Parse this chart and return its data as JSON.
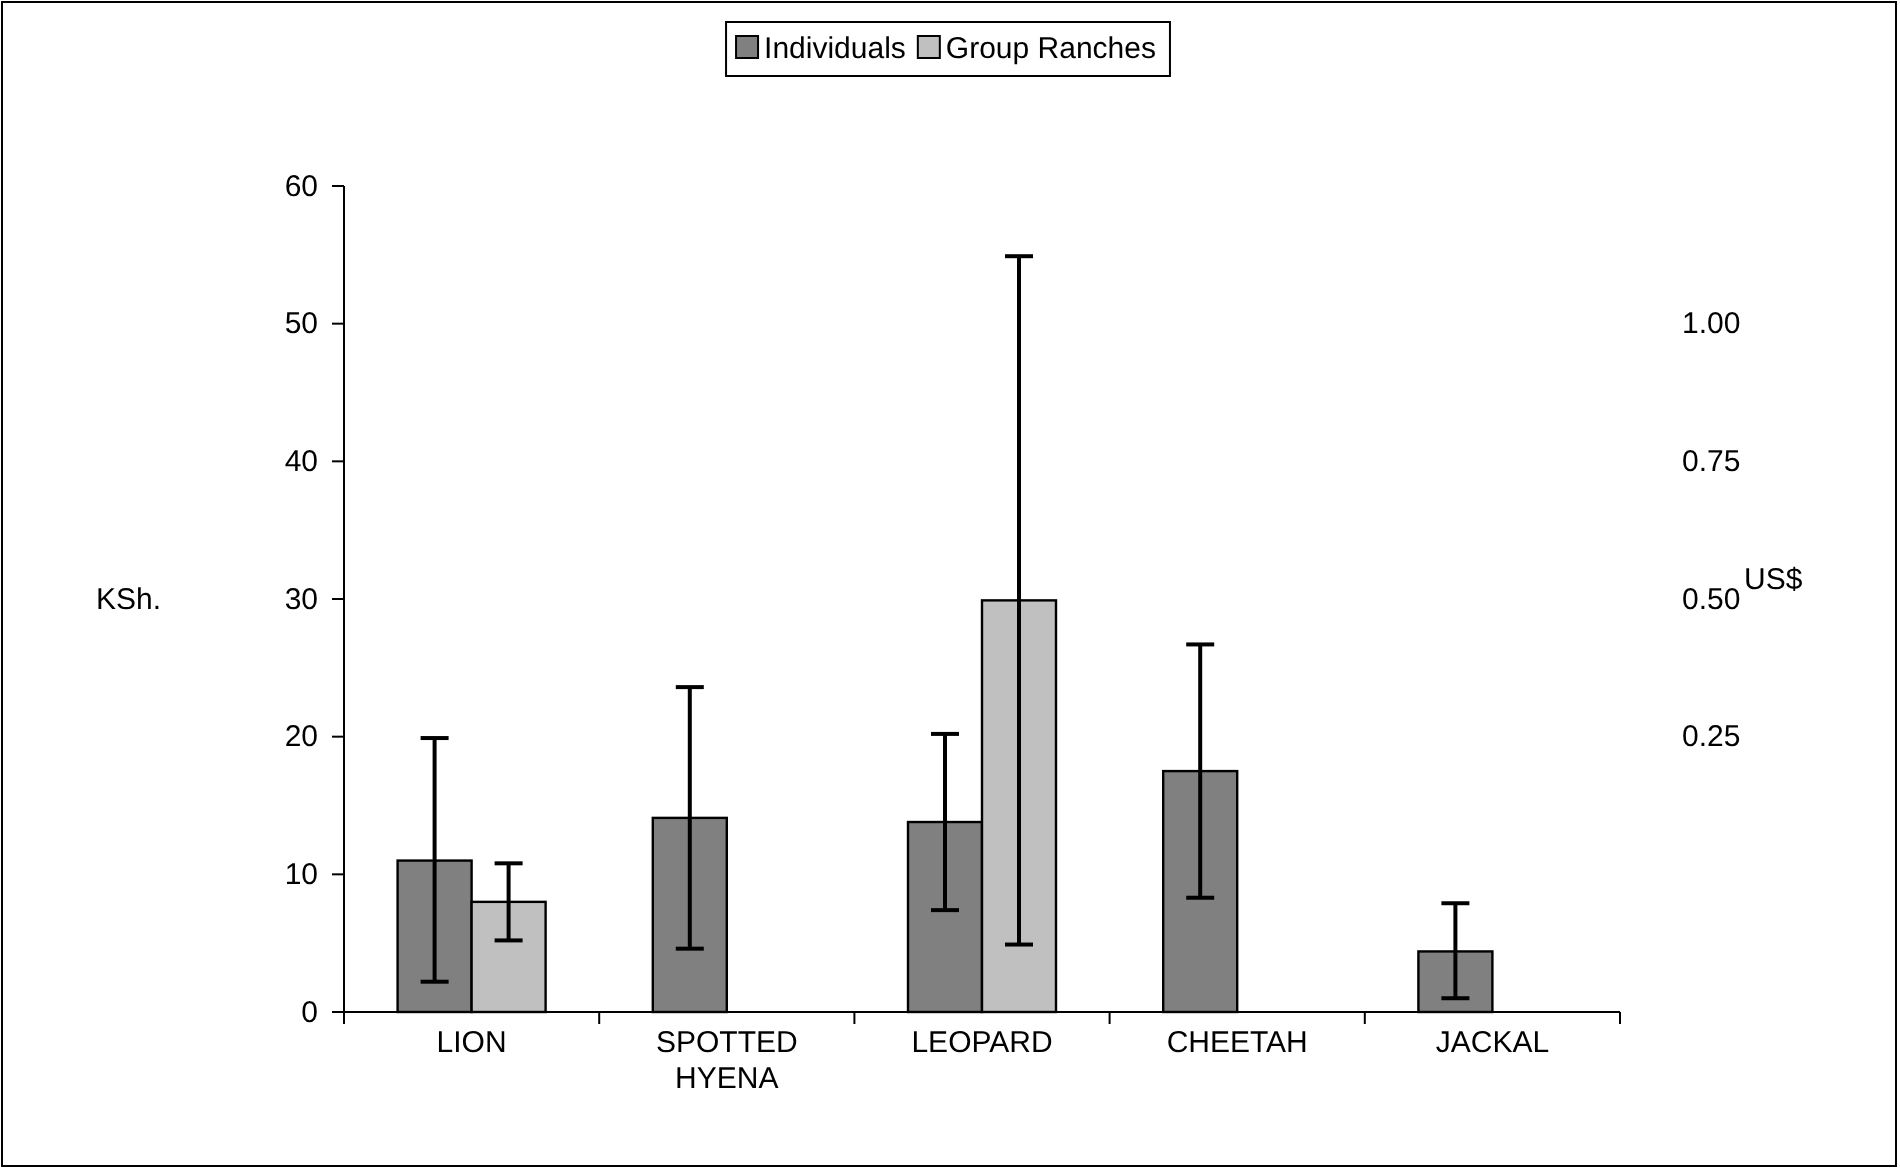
{
  "chart_data": {
    "type": "bar",
    "categories": [
      "LION",
      "SPOTTED HYENA",
      "LEOPARD",
      "CHEETAH",
      "JACKAL"
    ],
    "series": [
      {
        "name": "Individuals",
        "color": "#808080",
        "values": [
          11.0,
          14.1,
          13.8,
          17.5,
          4.4
        ],
        "errors": [
          [
            2.2,
            19.9
          ],
          [
            4.6,
            23.6
          ],
          [
            7.4,
            20.2
          ],
          [
            8.3,
            26.7
          ],
          [
            1.0,
            7.9
          ]
        ]
      },
      {
        "name": "Group Ranches",
        "color": "#c0c0c0",
        "values": [
          8.0,
          0,
          29.9,
          0,
          0
        ],
        "errors": [
          [
            5.2,
            10.8
          ],
          null,
          [
            4.9,
            54.9
          ],
          null,
          null
        ]
      }
    ],
    "ylabel": "KSh.",
    "y2label": "US$",
    "ylim": [
      0,
      60
    ],
    "yticks": [
      0,
      10,
      20,
      30,
      40,
      50,
      60
    ],
    "y2lim": [
      -0.25,
      1.25
    ],
    "y2ticks": [
      {
        "value": 0.25,
        "label": "0.25"
      },
      {
        "value": 0.5,
        "label": "0.50"
      },
      {
        "value": 0.75,
        "label": "0.75"
      },
      {
        "value": 1.0,
        "label": "1.00"
      }
    ],
    "legend": "top",
    "grid": false
  }
}
